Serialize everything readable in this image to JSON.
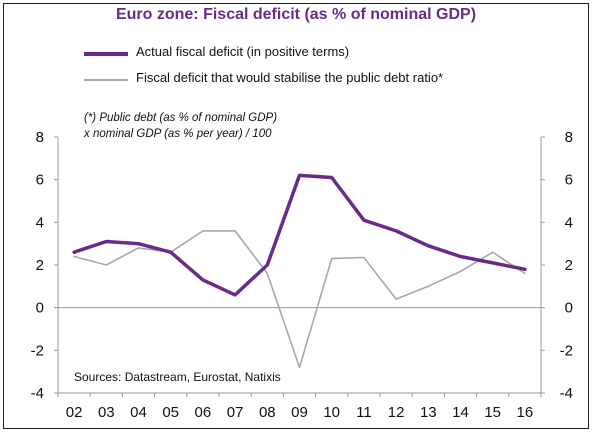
{
  "chart_data": {
    "type": "line",
    "title": "Euro zone: Fiscal deficit (as % of nominal GDP)",
    "x": [
      "02",
      "03",
      "04",
      "05",
      "06",
      "07",
      "08",
      "09",
      "10",
      "11",
      "12",
      "13",
      "14",
      "15",
      "16"
    ],
    "ylim": [
      -4,
      8
    ],
    "yticks": [
      -4,
      -2,
      0,
      2,
      4,
      6,
      8
    ],
    "y2ticks": [
      -4,
      -2,
      0,
      2,
      4,
      6,
      8
    ],
    "grid": false,
    "legend_position": "top-left",
    "series": [
      {
        "name": "Actual fiscal deficit (in positive terms)",
        "color": "#6a2a8c",
        "values": [
          2.6,
          3.1,
          3.0,
          2.6,
          1.3,
          0.6,
          2.0,
          6.2,
          6.1,
          4.1,
          3.6,
          2.9,
          2.4,
          2.1,
          1.8
        ]
      },
      {
        "name": "Fiscal deficit that would stabilise the public debt ratio*",
        "color": "#a8a8a8",
        "values": [
          2.4,
          2.0,
          2.8,
          2.6,
          3.6,
          3.6,
          1.6,
          -2.8,
          2.3,
          2.35,
          0.4,
          1.0,
          1.7,
          2.6,
          1.6
        ]
      }
    ],
    "annotation": [
      "(*) Public debt (as % of nominal GDP)",
      "x nominal GDP (as % per year) / 100"
    ],
    "source": "Sources: Datastream, Eurostat, Natixis"
  }
}
